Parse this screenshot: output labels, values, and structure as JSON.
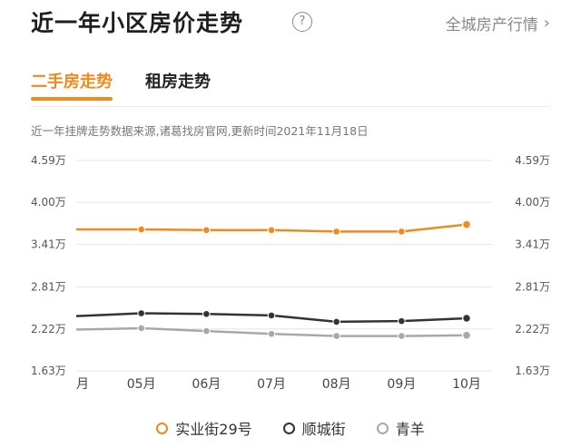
{
  "header": {
    "title": "近一年小区房价走势",
    "help_glyph": "?",
    "city_link": "全城房产行情",
    "city_link_chevron": "›"
  },
  "tabs": [
    {
      "label": "二手房走势",
      "active": true
    },
    {
      "label": "租房走势",
      "active": false
    }
  ],
  "source_note": "近一年挂牌走势数据来源,诸葛找房官网,更新时间2021年11月18日",
  "colors": {
    "accent": "#f08a1c",
    "series_1": "#f08a1c",
    "series_2": "#333333",
    "series_3": "#a8a8a8"
  },
  "chart_data": {
    "type": "line",
    "title": "",
    "xlabel": "",
    "ylabel": "",
    "x": [
      "月",
      "05月",
      "06月",
      "07月",
      "08月",
      "09月",
      "10月"
    ],
    "y_ticks": [
      "4.59万",
      "4.00万",
      "3.41万",
      "2.81万",
      "2.22万",
      "1.63万"
    ],
    "y_tick_values": [
      4.59,
      4.0,
      3.41,
      2.81,
      2.22,
      1.63
    ],
    "ylim": [
      1.63,
      4.59
    ],
    "grid": true,
    "legend_position": "bottom",
    "series": [
      {
        "name": "实业街29号",
        "color": "#f08a1c",
        "values": [
          3.62,
          3.62,
          3.61,
          3.61,
          3.59,
          3.59,
          3.69
        ]
      },
      {
        "name": "顺城街",
        "color": "#333333",
        "values": [
          2.4,
          2.44,
          2.43,
          2.41,
          2.32,
          2.33,
          2.37
        ]
      },
      {
        "name": "青羊",
        "color": "#a8a8a8",
        "values": [
          2.21,
          2.23,
          2.19,
          2.15,
          2.12,
          2.12,
          2.13
        ]
      }
    ]
  }
}
